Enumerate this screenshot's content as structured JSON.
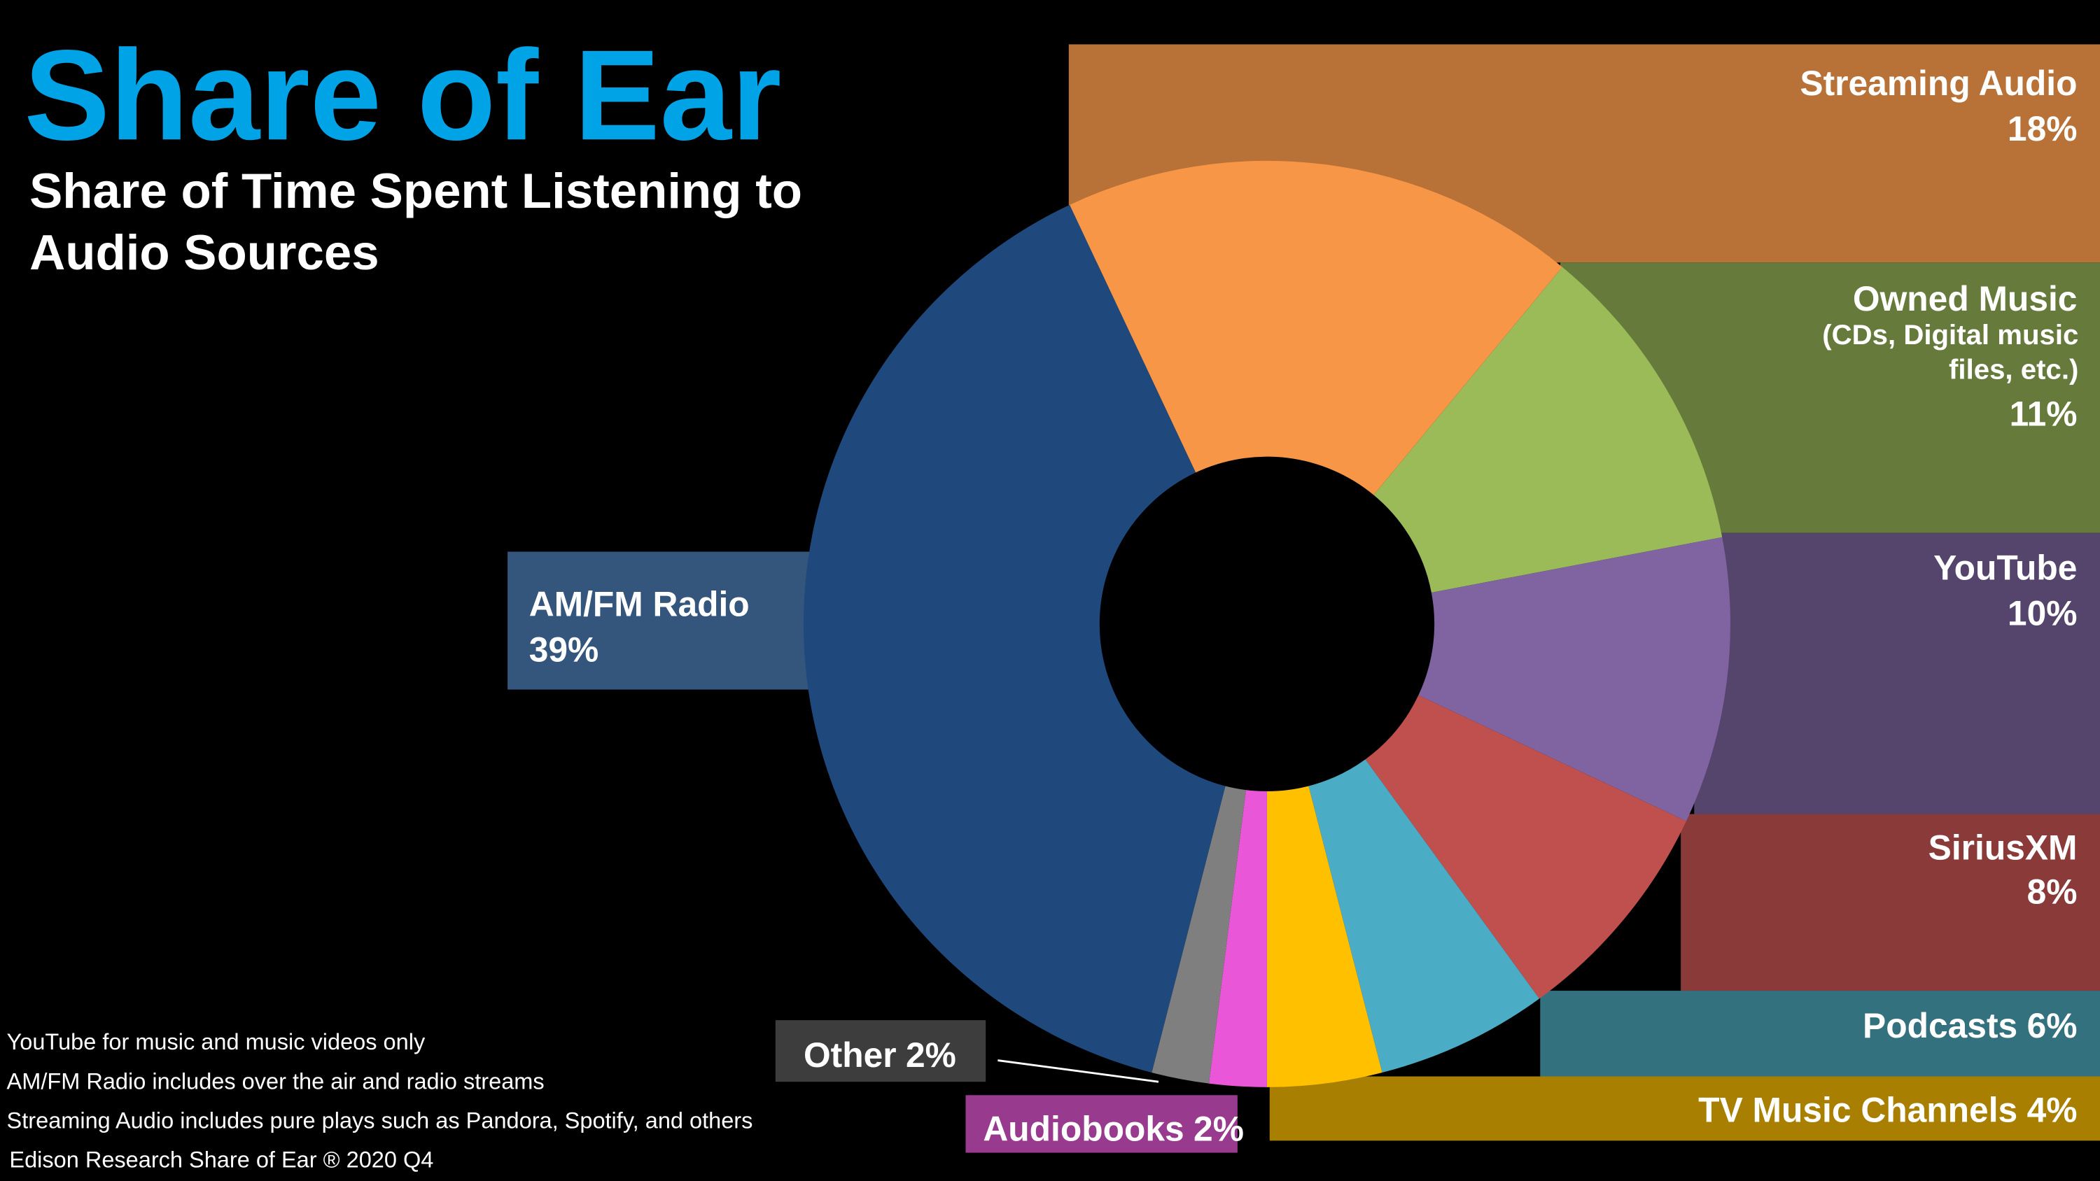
{
  "chart_data": {
    "type": "donut",
    "title": "Share of Ear",
    "subtitle": "Share of Time Spent Listening to Audio Sources",
    "categories": [
      "Streaming Audio",
      "Owned Music",
      "YouTube",
      "SiriusXM",
      "Podcasts",
      "TV Music Channels",
      "Audiobooks",
      "Other",
      "AM/FM Radio"
    ],
    "category_notes": [
      null,
      "(CDs, Digital music files, etc.)",
      null,
      null,
      null,
      null,
      null,
      null,
      null
    ],
    "values": [
      18,
      11,
      10,
      8,
      6,
      4,
      2,
      2,
      39
    ],
    "value_labels": [
      "18%",
      "11%",
      "10%",
      "8%",
      "6%",
      "4%",
      "2%",
      "2%",
      "39%"
    ],
    "colors": [
      "#f79646",
      "#9bbb59",
      "#8064a2",
      "#c0504d",
      "#4bacc6",
      "#ffc000",
      "#e957d8",
      "#7f7f7f",
      "#1f497d"
    ],
    "label_colors": [
      "#b87137",
      "#667a3c",
      "#55446b",
      "#8a3a38",
      "#34717f",
      "#a97f00",
      "#983a8e",
      "#3d3d3d",
      "#34557c"
    ],
    "footnotes": [
      "YouTube for music and music videos only",
      "AM/FM Radio includes over the air and radio streams",
      "Streaming Audio includes pure plays such as Pandora, Spotify, and others",
      "Edison Research Share of Ear ® 2020 Q4"
    ]
  }
}
